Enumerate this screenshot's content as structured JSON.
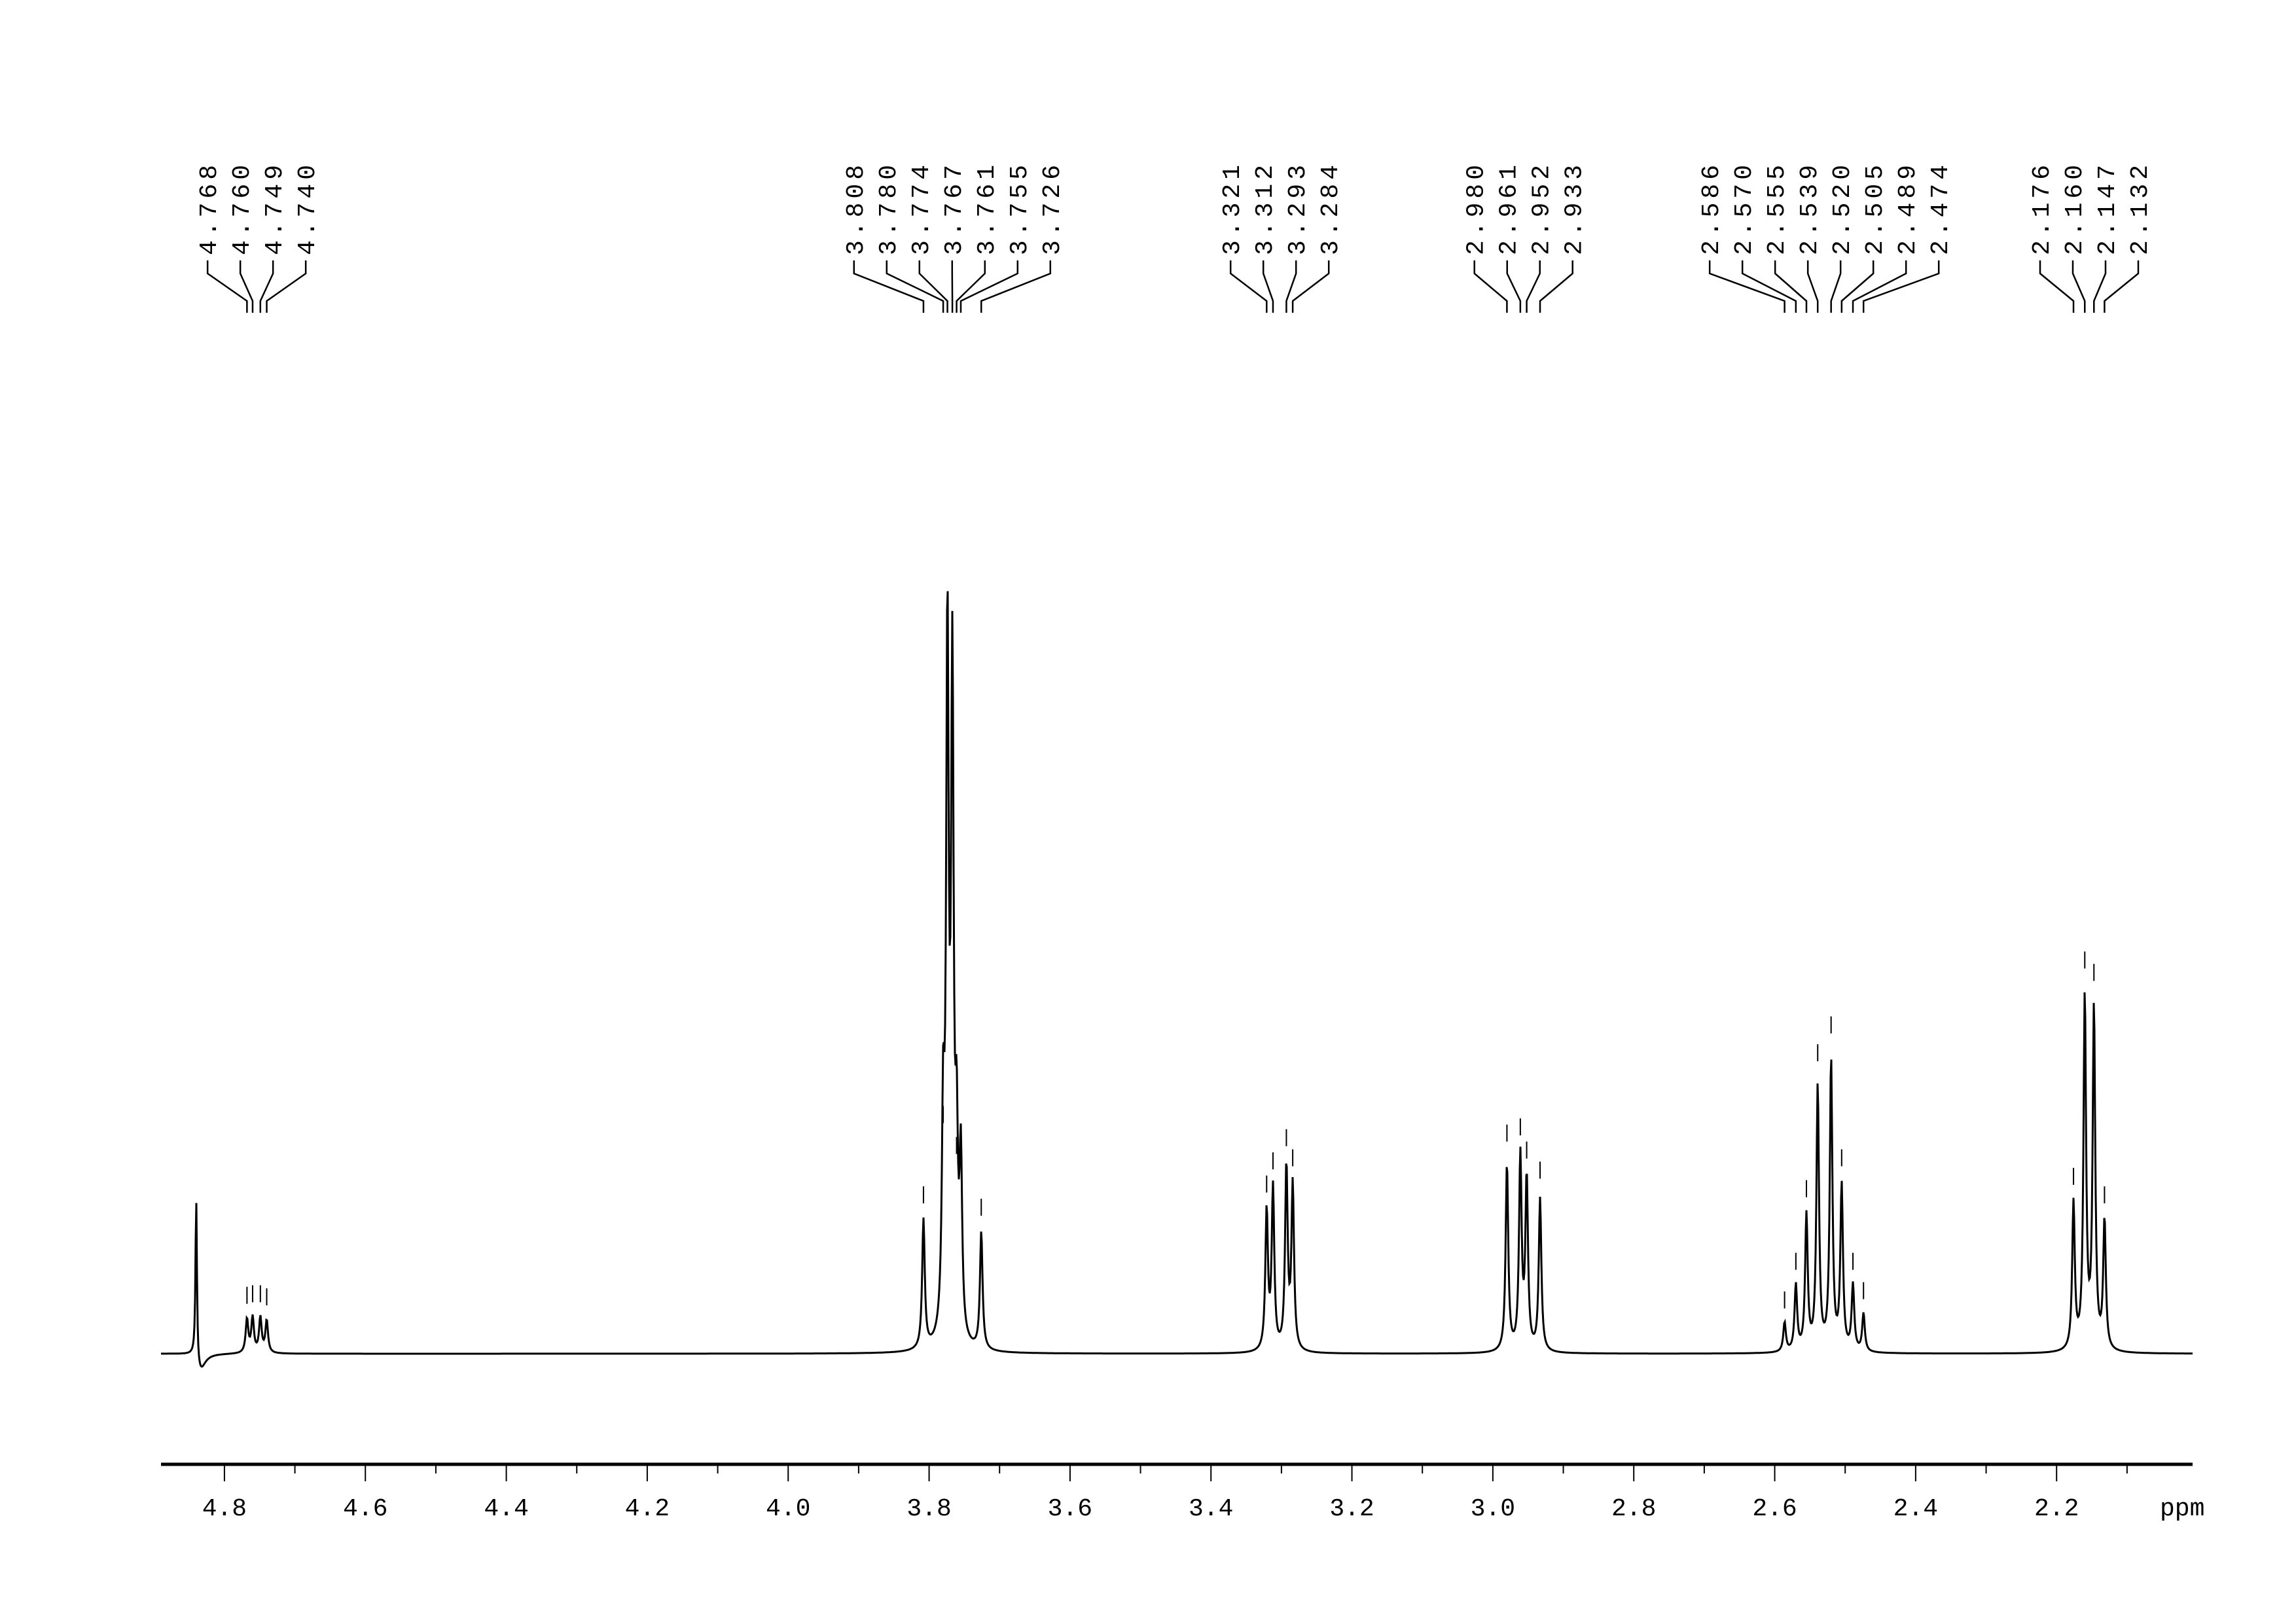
{
  "chart_data": {
    "type": "line",
    "title": "",
    "xlabel": "ppm",
    "ylabel": "",
    "xlim": [
      4.89,
      2.007
    ],
    "x_reversed": true,
    "x_ticks_major": [
      4.8,
      4.6,
      4.4,
      4.2,
      4.0,
      3.8,
      3.6,
      3.4,
      3.2,
      3.0,
      2.8,
      2.6,
      2.4,
      2.2
    ],
    "x_tick_labels": [
      "4.8",
      "4.6",
      "4.4",
      "4.2",
      "4.0",
      "3.8",
      "3.6",
      "3.4",
      "3.2",
      "3.0",
      "2.8",
      "2.6",
      "2.4",
      "2.2"
    ],
    "x_ticks_minor": [
      4.7,
      4.5,
      4.3,
      4.1,
      3.9,
      3.7,
      3.5,
      3.3,
      3.1,
      2.9,
      2.7,
      2.5,
      2.3,
      2.1
    ],
    "grid": false,
    "line_color": "#000000",
    "unlabeled_peaks": [
      {
        "ppm": 4.84,
        "intensity": 112
      }
    ],
    "peak_groups": [
      {
        "peaks": [
          {
            "ppm": 4.768,
            "intensity": 23
          },
          {
            "ppm": 4.76,
            "intensity": 24
          },
          {
            "ppm": 4.749,
            "intensity": 24
          },
          {
            "ppm": 4.74,
            "intensity": 22
          }
        ]
      },
      {
        "peaks": [
          {
            "ppm": 3.808,
            "intensity": 88
          },
          {
            "ppm": 3.78,
            "intensity": 140
          },
          {
            "ppm": 3.774,
            "intensity": 470
          },
          {
            "ppm": 3.767,
            "intensity": 440
          },
          {
            "ppm": 3.761,
            "intensity": 120
          },
          {
            "ppm": 3.755,
            "intensity": 120
          },
          {
            "ppm": 3.726,
            "intensity": 80
          }
        ]
      },
      {
        "peaks": [
          {
            "ppm": 3.321,
            "intensity": 95
          },
          {
            "ppm": 3.312,
            "intensity": 110
          },
          {
            "ppm": 3.293,
            "intensity": 125
          },
          {
            "ppm": 3.284,
            "intensity": 112
          }
        ]
      },
      {
        "peaks": [
          {
            "ppm": 2.98,
            "intensity": 128
          },
          {
            "ppm": 2.961,
            "intensity": 132
          },
          {
            "ppm": 2.952,
            "intensity": 117
          },
          {
            "ppm": 2.933,
            "intensity": 104
          }
        ]
      },
      {
        "peaks": [
          {
            "ppm": 2.586,
            "intensity": 20
          },
          {
            "ppm": 2.57,
            "intensity": 45
          },
          {
            "ppm": 2.555,
            "intensity": 92
          },
          {
            "ppm": 2.539,
            "intensity": 180
          },
          {
            "ppm": 2.52,
            "intensity": 198
          },
          {
            "ppm": 2.505,
            "intensity": 112
          },
          {
            "ppm": 2.489,
            "intensity": 45
          },
          {
            "ppm": 2.474,
            "intensity": 26
          }
        ]
      },
      {
        "peaks": [
          {
            "ppm": 2.176,
            "intensity": 100
          },
          {
            "ppm": 2.16,
            "intensity": 240
          },
          {
            "ppm": 2.147,
            "intensity": 232
          },
          {
            "ppm": 2.132,
            "intensity": 88
          }
        ]
      }
    ],
    "peak_labels": [
      [
        "4.768",
        "4.760",
        "4.749",
        "4.740"
      ],
      [
        "3.808",
        "3.780",
        "3.774",
        "3.767",
        "3.761",
        "3.755",
        "3.726"
      ],
      [
        "3.321",
        "3.312",
        "3.293",
        "3.284"
      ],
      [
        "2.980",
        "2.961",
        "2.952",
        "2.933"
      ],
      [
        "2.586",
        "2.570",
        "2.555",
        "2.539",
        "2.520",
        "2.505",
        "2.489",
        "2.474"
      ],
      [
        "2.176",
        "2.160",
        "2.147",
        "2.132"
      ]
    ]
  }
}
